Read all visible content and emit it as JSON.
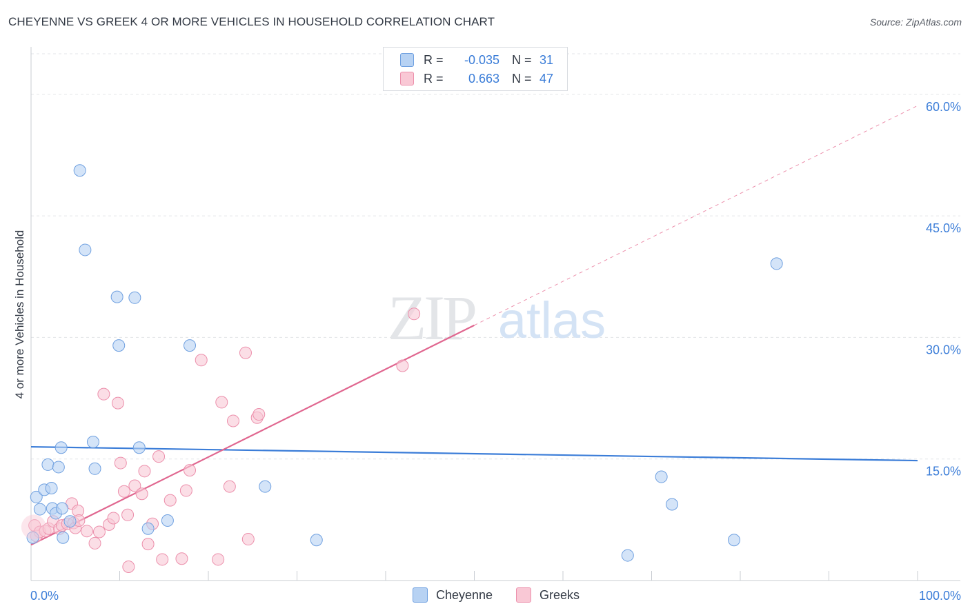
{
  "title": "CHEYENNE VS GREEK 4 OR MORE VEHICLES IN HOUSEHOLD CORRELATION CHART",
  "source": "Source: ZipAtlas.com",
  "watermark": {
    "zip": "ZIP",
    "atlas": "atlas"
  },
  "legend": {
    "r_label": "R =",
    "n_label": "N =",
    "rows": [
      {
        "name": "Cheyenne",
        "r": "-0.035",
        "n": "31",
        "fill": "#b7d2f3",
        "stroke": "#6fa0e0"
      },
      {
        "name": "Greeks",
        "r": "0.663",
        "n": "47",
        "fill": "#f9c8d5",
        "stroke": "#ec8fab"
      }
    ]
  },
  "chart_data": {
    "type": "scatter",
    "title": "CHEYENNE VS GREEK 4 OR MORE VEHICLES IN HOUSEHOLD CORRELATION CHART",
    "xlabel": "",
    "ylabel": "4 or more Vehicles in Household",
    "xlim": [
      0,
      100
    ],
    "ylim": [
      0,
      65
    ],
    "x_tick_labels": [
      "0.0%",
      "100.0%"
    ],
    "y_ticks": [
      15,
      30,
      45,
      60
    ],
    "y_tick_labels": [
      "15.0%",
      "30.0%",
      "45.0%",
      "60.0%"
    ],
    "grid": true,
    "series": [
      {
        "name": "Cheyenne",
        "color": "#3b7dd8",
        "fill": "#b7d2f3",
        "points": [
          [
            0.2,
            5.3
          ],
          [
            0.6,
            10.3
          ],
          [
            1.0,
            8.8
          ],
          [
            1.5,
            11.2
          ],
          [
            1.9,
            14.3
          ],
          [
            2.3,
            11.4
          ],
          [
            2.4,
            8.9
          ],
          [
            2.8,
            8.3
          ],
          [
            3.1,
            14.0
          ],
          [
            3.4,
            16.4
          ],
          [
            3.5,
            8.9
          ],
          [
            3.6,
            5.3
          ],
          [
            4.4,
            7.3
          ],
          [
            5.5,
            50.6
          ],
          [
            6.1,
            40.8
          ],
          [
            7.0,
            17.1
          ],
          [
            7.2,
            13.8
          ],
          [
            9.7,
            35.0
          ],
          [
            9.9,
            29.0
          ],
          [
            11.7,
            34.9
          ],
          [
            12.2,
            16.4
          ],
          [
            13.2,
            6.4
          ],
          [
            15.4,
            7.4
          ],
          [
            17.9,
            29.0
          ],
          [
            26.4,
            11.6
          ],
          [
            32.2,
            5.0
          ],
          [
            67.3,
            3.1
          ],
          [
            71.1,
            12.8
          ],
          [
            72.3,
            9.4
          ],
          [
            79.3,
            5.0
          ],
          [
            84.1,
            39.1
          ]
        ],
        "trend": {
          "x0": 0,
          "y0": 16.5,
          "x1": 100,
          "y1": 14.8
        }
      },
      {
        "name": "Greeks",
        "color": "#e0668f",
        "fill": "#f9c8d5",
        "points": [
          [
            0.4,
            6.8
          ],
          [
            0.6,
            5.5
          ],
          [
            1.0,
            6.0
          ],
          [
            1.6,
            6.1
          ],
          [
            2.0,
            6.4
          ],
          [
            2.5,
            7.3
          ],
          [
            3.2,
            6.4
          ],
          [
            3.5,
            6.8
          ],
          [
            4.1,
            7.0
          ],
          [
            4.6,
            9.5
          ],
          [
            4.8,
            7.1
          ],
          [
            5.0,
            6.5
          ],
          [
            5.3,
            8.6
          ],
          [
            5.4,
            7.4
          ],
          [
            6.3,
            6.1
          ],
          [
            7.2,
            4.6
          ],
          [
            7.7,
            6.0
          ],
          [
            8.2,
            23.0
          ],
          [
            8.8,
            6.9
          ],
          [
            9.3,
            7.7
          ],
          [
            9.8,
            21.9
          ],
          [
            10.1,
            14.5
          ],
          [
            10.5,
            11.0
          ],
          [
            10.9,
            8.1
          ],
          [
            11.0,
            1.7
          ],
          [
            11.7,
            11.7
          ],
          [
            12.5,
            10.7
          ],
          [
            12.8,
            13.5
          ],
          [
            13.2,
            4.5
          ],
          [
            13.7,
            7.0
          ],
          [
            14.4,
            15.3
          ],
          [
            14.8,
            2.6
          ],
          [
            15.7,
            9.9
          ],
          [
            17.0,
            2.7
          ],
          [
            17.5,
            11.1
          ],
          [
            17.9,
            13.6
          ],
          [
            19.2,
            27.2
          ],
          [
            21.1,
            2.6
          ],
          [
            21.5,
            22.0
          ],
          [
            22.4,
            11.6
          ],
          [
            22.8,
            19.7
          ],
          [
            24.2,
            28.1
          ],
          [
            24.5,
            5.1
          ],
          [
            25.5,
            20.1
          ],
          [
            25.7,
            20.5
          ],
          [
            41.9,
            26.5
          ],
          [
            43.2,
            32.9
          ]
        ],
        "trend": {
          "x0": 0,
          "y0": 4.4,
          "x1": 100,
          "y1": 58.6,
          "solid_until_x": 50
        }
      }
    ]
  }
}
